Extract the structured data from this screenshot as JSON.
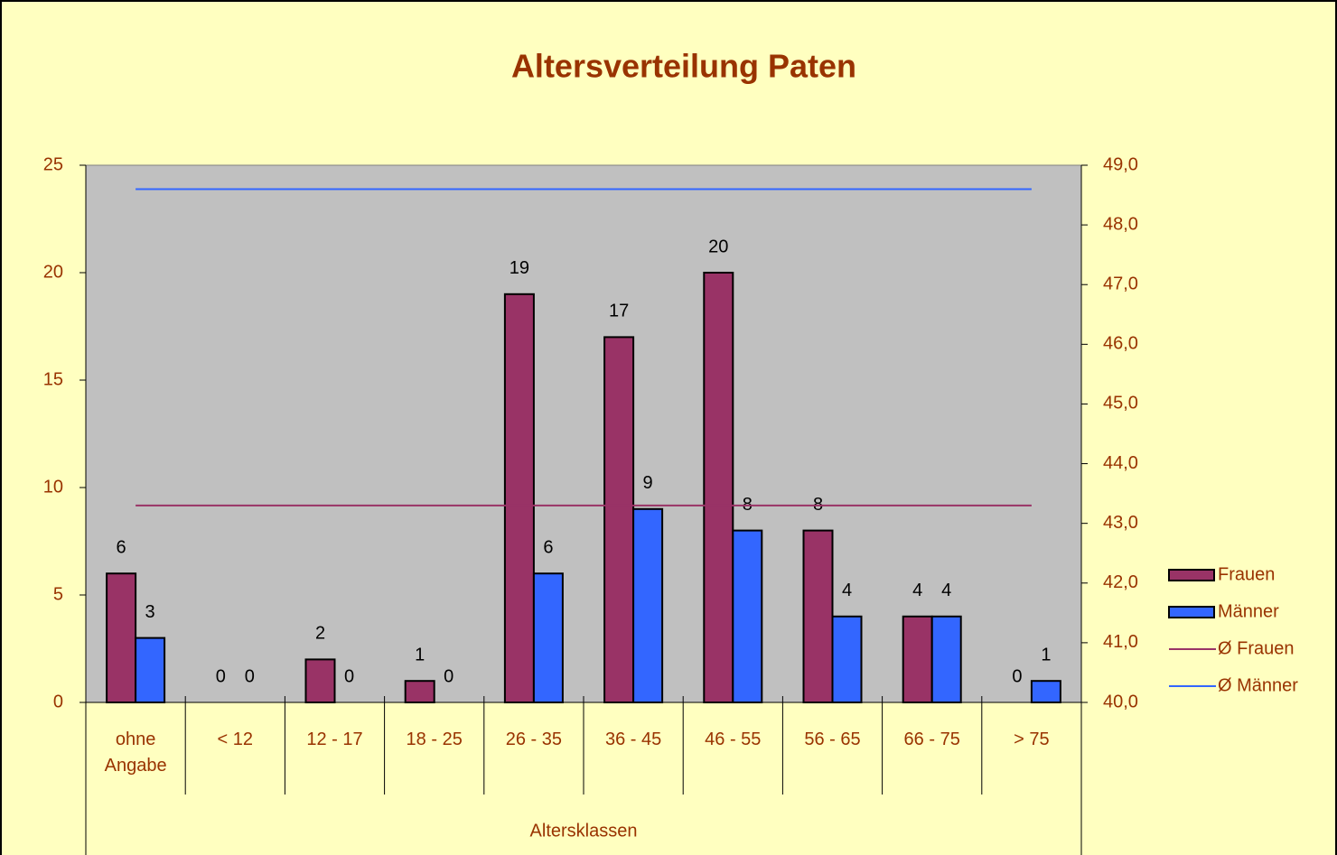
{
  "chart_data": {
    "type": "bar",
    "title": "Altersverteilung Paten",
    "x_label": "Altersklassen",
    "categories": [
      "ohne Angabe",
      "< 12",
      "12 - 17",
      "18 - 25",
      "26 - 35",
      "36 - 45",
      "46 - 55",
      "56 - 65",
      "66 - 75",
      "> 75"
    ],
    "series": [
      {
        "name": "Frauen",
        "type": "bar",
        "color": "#993366",
        "values": [
          6,
          0,
          2,
          1,
          19,
          17,
          20,
          8,
          4,
          0
        ]
      },
      {
        "name": "Männer",
        "type": "bar",
        "color": "#3366FF",
        "values": [
          3,
          0,
          0,
          0,
          6,
          9,
          8,
          4,
          4,
          1
        ]
      },
      {
        "name": "Ø Frauen",
        "type": "line",
        "axis": "y2",
        "color": "#993366",
        "values": [
          43.3,
          43.3,
          43.3,
          43.3,
          43.3,
          43.3,
          43.3,
          43.3,
          43.3,
          43.3
        ]
      },
      {
        "name": "Ø Männer",
        "type": "line",
        "axis": "y2",
        "color": "#3366FF",
        "values": [
          48.6,
          48.6,
          48.6,
          48.6,
          48.6,
          48.6,
          48.6,
          48.6,
          48.6,
          48.6
        ]
      }
    ],
    "ylim": [
      0,
      25
    ],
    "yticks": [
      0,
      5,
      10,
      15,
      20,
      25
    ],
    "y2lim": [
      40,
      49
    ],
    "y2ticks": [
      {
        "value": 40,
        "label": "40,0"
      },
      {
        "value": 41,
        "label": "41,0"
      },
      {
        "value": 42,
        "label": "42,0"
      },
      {
        "value": 43,
        "label": "43,0"
      },
      {
        "value": 44,
        "label": "44,0"
      },
      {
        "value": 45,
        "label": "45,0"
      },
      {
        "value": 46,
        "label": "46,0"
      },
      {
        "value": 47,
        "label": "47,0"
      },
      {
        "value": 48,
        "label": "48,0"
      },
      {
        "value": 49,
        "label": "49,0"
      }
    ],
    "legend": "right",
    "plot_background": "#C0C0C0"
  }
}
